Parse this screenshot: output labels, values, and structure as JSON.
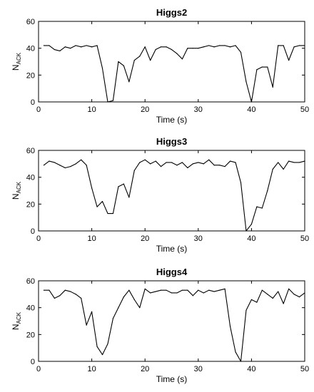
{
  "chart_data": [
    {
      "type": "line",
      "title": "Higgs2",
      "xlabel": "Time (s)",
      "ylabel_main": "N",
      "ylabel_sub": "ACK",
      "xlim": [
        0,
        50
      ],
      "ylim": [
        0,
        60
      ],
      "xticks": [
        0,
        10,
        20,
        30,
        40,
        50
      ],
      "yticks": [
        0,
        20,
        40,
        60
      ],
      "grid": false,
      "series": [
        {
          "x": [
            1,
            2,
            3,
            4,
            5,
            6,
            7,
            8,
            9,
            10,
            11,
            12,
            13,
            14,
            15,
            16,
            17,
            18,
            19,
            20,
            21,
            22,
            23,
            24,
            25,
            26,
            27,
            28,
            29,
            30,
            31,
            32,
            33,
            34,
            35,
            36,
            37,
            38,
            39,
            40,
            41,
            42,
            43,
            44,
            45,
            46,
            47,
            48,
            49,
            50
          ],
          "values": [
            42,
            42,
            39,
            38,
            41,
            40,
            42,
            41,
            42,
            41,
            42,
            25,
            0,
            1,
            30,
            27,
            15,
            31,
            34,
            41,
            31,
            39,
            41,
            41,
            39,
            36,
            32,
            40,
            40,
            40,
            41,
            42,
            41,
            42,
            42,
            41,
            42,
            37,
            15,
            0,
            24,
            26,
            26,
            11,
            42,
            42,
            31,
            41,
            42,
            42
          ]
        }
      ]
    },
    {
      "type": "line",
      "title": "Higgs3",
      "xlabel": "Time (s)",
      "ylabel_main": "N",
      "ylabel_sub": "ACK",
      "xlim": [
        0,
        50
      ],
      "ylim": [
        0,
        60
      ],
      "xticks": [
        0,
        10,
        20,
        30,
        40,
        50
      ],
      "yticks": [
        0,
        20,
        40,
        60
      ],
      "grid": false,
      "series": [
        {
          "x": [
            1,
            2,
            3,
            4,
            5,
            6,
            7,
            8,
            9,
            10,
            11,
            12,
            13,
            14,
            15,
            16,
            17,
            18,
            19,
            20,
            21,
            22,
            23,
            24,
            25,
            26,
            27,
            28,
            29,
            30,
            31,
            32,
            33,
            34,
            35,
            36,
            37,
            38,
            39,
            40,
            41,
            42,
            43,
            44,
            45,
            46,
            47,
            48,
            49,
            50
          ],
          "values": [
            49,
            52,
            51,
            49,
            47,
            48,
            50,
            53,
            49,
            32,
            18,
            22,
            13,
            13,
            33,
            35,
            25,
            45,
            51,
            53,
            50,
            52,
            48,
            51,
            51,
            49,
            51,
            47,
            50,
            51,
            50,
            53,
            49,
            49,
            48,
            52,
            51,
            36,
            0,
            5,
            18,
            17,
            30,
            46,
            51,
            46,
            52,
            51,
            51,
            52
          ]
        }
      ]
    },
    {
      "type": "line",
      "title": "Higgs4",
      "xlabel": "Time (s)",
      "ylabel_main": "N",
      "ylabel_sub": "ACK",
      "xlim": [
        0,
        50
      ],
      "ylim": [
        0,
        60
      ],
      "xticks": [
        0,
        10,
        20,
        30,
        40,
        50
      ],
      "yticks": [
        0,
        20,
        40,
        60
      ],
      "grid": false,
      "series": [
        {
          "x": [
            1,
            2,
            3,
            4,
            5,
            6,
            7,
            8,
            9,
            10,
            11,
            12,
            13,
            14,
            15,
            16,
            17,
            18,
            19,
            20,
            21,
            22,
            23,
            24,
            25,
            26,
            27,
            28,
            29,
            30,
            31,
            32,
            33,
            34,
            35,
            36,
            37,
            38,
            39,
            40,
            41,
            42,
            43,
            44,
            45,
            46,
            47,
            48,
            49,
            50
          ],
          "values": [
            53,
            53,
            47,
            49,
            53,
            52,
            50,
            47,
            27,
            37,
            11,
            5,
            13,
            32,
            40,
            48,
            53,
            46,
            40,
            54,
            51,
            52,
            53,
            53,
            51,
            51,
            53,
            53,
            49,
            53,
            51,
            53,
            52,
            53,
            54,
            26,
            7,
            0,
            38,
            46,
            44,
            53,
            50,
            47,
            52,
            43,
            54,
            50,
            48,
            51
          ]
        }
      ]
    }
  ]
}
